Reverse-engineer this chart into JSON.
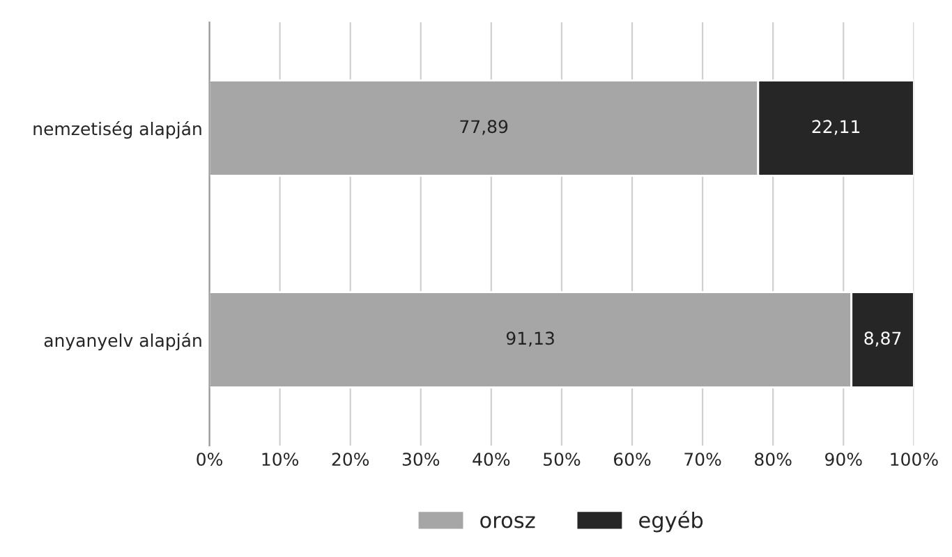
{
  "chart_data": {
    "type": "bar",
    "orientation": "horizontal",
    "stacked": true,
    "categories": [
      "nemzetiség alapján",
      "anyanyelv alapján"
    ],
    "series": [
      {
        "name": "orosz",
        "color": "#a6a6a6",
        "values": [
          77.89,
          91.13
        ],
        "value_labels": [
          "77,89",
          "91,13"
        ]
      },
      {
        "name": "egyéb",
        "color": "#262626",
        "values": [
          22.11,
          8.87
        ],
        "value_labels": [
          "22,11",
          "8,87"
        ]
      }
    ],
    "xlim": [
      0,
      100
    ],
    "xticks": [
      {
        "value": 0,
        "label": "0%"
      },
      {
        "value": 10,
        "label": "10%"
      },
      {
        "value": 20,
        "label": "20%"
      },
      {
        "value": 30,
        "label": "30%"
      },
      {
        "value": 40,
        "label": "40%"
      },
      {
        "value": 50,
        "label": "50%"
      },
      {
        "value": 60,
        "label": "60%"
      },
      {
        "value": 70,
        "label": "70%"
      },
      {
        "value": 80,
        "label": "80%"
      },
      {
        "value": 90,
        "label": "90%"
      },
      {
        "value": 100,
        "label": "100%"
      }
    ],
    "grid": "x",
    "legend": "bottom"
  }
}
